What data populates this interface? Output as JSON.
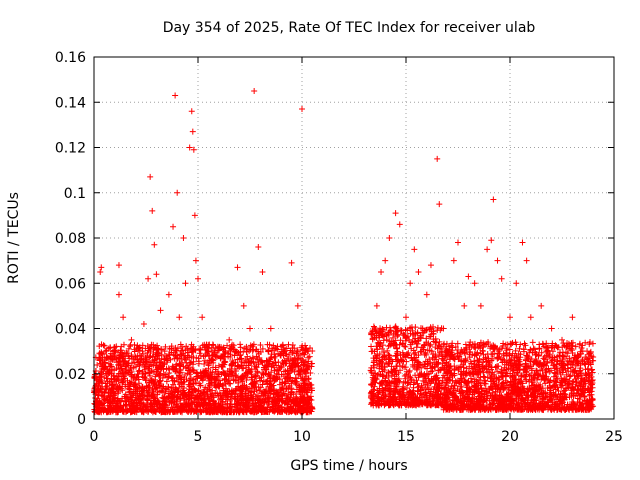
{
  "chart_data": {
    "type": "scatter",
    "title": "Day 354 of 2025, Rate Of TEC Index for receiver ulab",
    "xlabel": "GPS time / hours",
    "ylabel": "ROTI / TECUs",
    "xlim": [
      0,
      25
    ],
    "ylim": [
      0,
      0.16
    ],
    "xticks": [
      0,
      5,
      10,
      15,
      20,
      25
    ],
    "yticks": [
      0,
      0.02,
      0.04,
      0.06,
      0.08,
      0.1,
      0.12,
      0.14,
      0.16
    ],
    "xtick_labels": [
      "0",
      "5",
      "10",
      "15",
      "20",
      "25"
    ],
    "ytick_labels": [
      "0",
      "0.02",
      "0.04",
      "0.06",
      "0.08",
      "0.1",
      "0.12",
      "0.14",
      "0.16"
    ],
    "grid": true,
    "marker": "+",
    "color": "#ff0000",
    "points": [
      [
        0.1,
        0.004
      ],
      [
        0.2,
        0.012
      ],
      [
        0.3,
        0.065
      ],
      [
        0.35,
        0.067
      ],
      [
        0.5,
        0.025
      ],
      [
        0.6,
        0.018
      ],
      [
        0.8,
        0.01
      ],
      [
        1.0,
        0.03
      ],
      [
        1.2,
        0.068
      ],
      [
        1.2,
        0.055
      ],
      [
        1.4,
        0.045
      ],
      [
        1.5,
        0.02
      ],
      [
        1.8,
        0.035
      ],
      [
        2.0,
        0.012
      ],
      [
        2.2,
        0.028
      ],
      [
        2.4,
        0.042
      ],
      [
        2.6,
        0.062
      ],
      [
        2.7,
        0.107
      ],
      [
        2.8,
        0.092
      ],
      [
        2.9,
        0.077
      ],
      [
        3.0,
        0.064
      ],
      [
        3.2,
        0.048
      ],
      [
        3.4,
        0.03
      ],
      [
        3.6,
        0.055
      ],
      [
        3.8,
        0.085
      ],
      [
        3.9,
        0.143
      ],
      [
        4.0,
        0.1
      ],
      [
        4.1,
        0.045
      ],
      [
        4.3,
        0.08
      ],
      [
        4.4,
        0.06
      ],
      [
        4.6,
        0.12
      ],
      [
        4.7,
        0.136
      ],
      [
        4.75,
        0.127
      ],
      [
        4.8,
        0.119
      ],
      [
        4.85,
        0.09
      ],
      [
        4.9,
        0.07
      ],
      [
        5.0,
        0.062
      ],
      [
        5.2,
        0.045
      ],
      [
        5.5,
        0.03
      ],
      [
        6.0,
        0.02
      ],
      [
        6.5,
        0.035
      ],
      [
        6.9,
        0.067
      ],
      [
        7.2,
        0.05
      ],
      [
        7.5,
        0.04
      ],
      [
        7.7,
        0.145
      ],
      [
        7.9,
        0.076
      ],
      [
        8.1,
        0.065
      ],
      [
        8.5,
        0.04
      ],
      [
        9.0,
        0.032
      ],
      [
        9.5,
        0.069
      ],
      [
        9.8,
        0.05
      ],
      [
        10.0,
        0.137
      ],
      [
        10.3,
        0.03
      ],
      [
        10.4,
        0.015
      ],
      [
        13.4,
        0.03
      ],
      [
        13.6,
        0.05
      ],
      [
        13.8,
        0.065
      ],
      [
        14.0,
        0.07
      ],
      [
        14.2,
        0.08
      ],
      [
        14.5,
        0.091
      ],
      [
        14.7,
        0.086
      ],
      [
        15.0,
        0.045
      ],
      [
        15.2,
        0.06
      ],
      [
        15.4,
        0.075
      ],
      [
        15.6,
        0.065
      ],
      [
        15.8,
        0.04
      ],
      [
        16.0,
        0.055
      ],
      [
        16.2,
        0.068
      ],
      [
        16.5,
        0.115
      ],
      [
        16.6,
        0.095
      ],
      [
        16.8,
        0.04
      ],
      [
        17.0,
        0.03
      ],
      [
        17.3,
        0.07
      ],
      [
        17.5,
        0.078
      ],
      [
        17.8,
        0.05
      ],
      [
        18.0,
        0.063
      ],
      [
        18.3,
        0.06
      ],
      [
        18.6,
        0.05
      ],
      [
        18.9,
        0.075
      ],
      [
        19.1,
        0.079
      ],
      [
        19.2,
        0.097
      ],
      [
        19.4,
        0.07
      ],
      [
        19.6,
        0.062
      ],
      [
        20.0,
        0.045
      ],
      [
        20.3,
        0.06
      ],
      [
        20.6,
        0.078
      ],
      [
        20.8,
        0.07
      ],
      [
        21.0,
        0.045
      ],
      [
        21.5,
        0.05
      ],
      [
        22.0,
        0.04
      ],
      [
        22.5,
        0.035
      ],
      [
        23.0,
        0.045
      ],
      [
        23.5,
        0.03
      ],
      [
        23.8,
        0.02
      ]
    ],
    "segments": [
      {
        "x_start": 0.0,
        "x_end": 10.5,
        "y_base": 0.003,
        "y_spread": 0.03
      },
      {
        "x_start": 13.3,
        "x_end": 16.8,
        "y_base": 0.006,
        "y_spread": 0.035
      },
      {
        "x_start": 16.8,
        "x_end": 24.0,
        "y_base": 0.004,
        "y_spread": 0.03
      }
    ]
  }
}
